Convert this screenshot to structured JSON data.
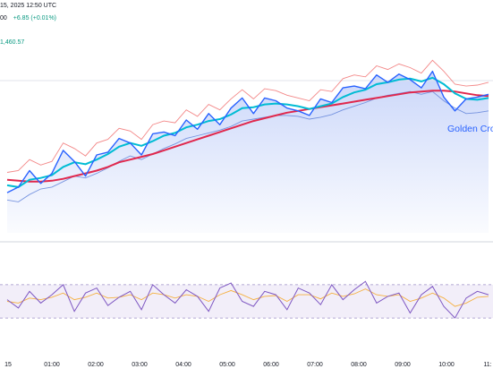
{
  "header": {
    "date_time": "15, 2025 12:50 UTC",
    "quote_prefix": "00",
    "quote_change": "+6.85 (+0.01%)",
    "ma_value": "1,460.57"
  },
  "annotation": {
    "golden_cross": "Golden Cro"
  },
  "colors": {
    "price": "#2962ff",
    "fast_ma": "#00bcd4",
    "slow_ma": "#e0284d",
    "bollinger": "#f06a6a",
    "lower_band": "#5b7ed8",
    "area_fill": "#9fb5f5",
    "oscillator": "#7e57c2",
    "signal": "#f5b041",
    "osc_band": "#ede7f6"
  },
  "chart_data": {
    "type": "line",
    "x": [
      "00:15",
      "00:30",
      "00:45",
      "01:00",
      "01:15",
      "01:30",
      "01:45",
      "02:00",
      "02:15",
      "02:30",
      "02:45",
      "03:00",
      "03:15",
      "03:30",
      "03:45",
      "04:00",
      "04:15",
      "04:30",
      "04:45",
      "05:00",
      "05:15",
      "05:30",
      "05:45",
      "06:00",
      "06:15",
      "06:30",
      "06:45",
      "07:00",
      "07:15",
      "07:30",
      "07:45",
      "08:00",
      "08:15",
      "08:30",
      "08:45",
      "09:00",
      "09:15",
      "09:30",
      "09:45",
      "10:00",
      "10:15",
      "10:30",
      "10:45",
      "11:00"
    ],
    "xticks": [
      "15",
      "01:00",
      "02:00",
      "03:00",
      "04:00",
      "05:00",
      "06:00",
      "07:00",
      "08:00",
      "09:00",
      "10:00",
      "11:"
    ],
    "series": [
      {
        "key": "price",
        "values": [
          34,
          40,
          58,
          44,
          55,
          80,
          68,
          52,
          75,
          78,
          93,
          88,
          75,
          98,
          100,
          96,
          113,
          103,
          120,
          108,
          126,
          137,
          120,
          137,
          134,
          126,
          123,
          118,
          136,
          132,
          148,
          150,
          147,
          162,
          154,
          163,
          157,
          148,
          166,
          138,
          123,
          136,
          138,
          141
        ]
      },
      {
        "key": "fast_ma",
        "values": [
          42,
          40,
          48,
          50,
          53,
          62,
          67,
          65,
          70,
          76,
          84,
          88,
          85,
          90,
          96,
          99,
          105,
          108,
          112,
          114,
          119,
          126,
          127,
          130,
          131,
          130,
          128,
          125,
          128,
          131,
          138,
          143,
          146,
          152,
          154,
          157,
          158,
          155,
          159,
          152,
          142,
          136,
          135,
          137
        ]
      },
      {
        "key": "slow_ma",
        "values": [
          48,
          47,
          46,
          46,
          47,
          49,
          52,
          55,
          58,
          62,
          67,
          70,
          73,
          76,
          80,
          84,
          88,
          92,
          96,
          100,
          104,
          108,
          112,
          115,
          118,
          121,
          123,
          125,
          127,
          129,
          131,
          133,
          135,
          137,
          139,
          141,
          143,
          144,
          145,
          145,
          144,
          142,
          140,
          139
        ]
      },
      {
        "key": "upper_band",
        "values": [
          56,
          58,
          70,
          64,
          68,
          88,
          82,
          74,
          88,
          92,
          104,
          101,
          92,
          108,
          112,
          110,
          124,
          117,
          130,
          124,
          136,
          146,
          136,
          147,
          145,
          140,
          137,
          134,
          146,
          144,
          158,
          162,
          160,
          172,
          168,
          174,
          170,
          164,
          178,
          166,
          152,
          150,
          151,
          154
        ]
      },
      {
        "key": "lower_band",
        "values": [
          26,
          24,
          32,
          38,
          40,
          46,
          52,
          50,
          55,
          61,
          68,
          74,
          70,
          76,
          82,
          87,
          93,
          96,
          99,
          102,
          106,
          112,
          114,
          116,
          118,
          118,
          117,
          114,
          116,
          119,
          124,
          128,
          132,
          137,
          140,
          142,
          144,
          141,
          144,
          134,
          126,
          120,
          121,
          123
        ]
      }
    ],
    "oscillator": [
      {
        "key": "osc",
        "values": [
          52,
          42,
          62,
          48,
          58,
          70,
          38,
          60,
          66,
          45,
          55,
          62,
          40,
          70,
          58,
          48,
          64,
          56,
          38,
          66,
          72,
          50,
          44,
          62,
          58,
          40,
          66,
          60,
          46,
          70,
          52,
          64,
          74,
          48,
          56,
          60,
          36,
          58,
          68,
          44,
          30,
          54,
          62,
          58
        ]
      },
      {
        "key": "osc_signal",
        "values": [
          50,
          48,
          54,
          52,
          55,
          60,
          52,
          55,
          60,
          54,
          55,
          58,
          52,
          60,
          58,
          54,
          58,
          56,
          50,
          58,
          63,
          58,
          52,
          56,
          57,
          50,
          58,
          58,
          53,
          60,
          56,
          59,
          65,
          58,
          56,
          58,
          50,
          54,
          60,
          54,
          44,
          48,
          55,
          56
        ]
      }
    ],
    "osc_band": [
      30,
      70
    ]
  }
}
